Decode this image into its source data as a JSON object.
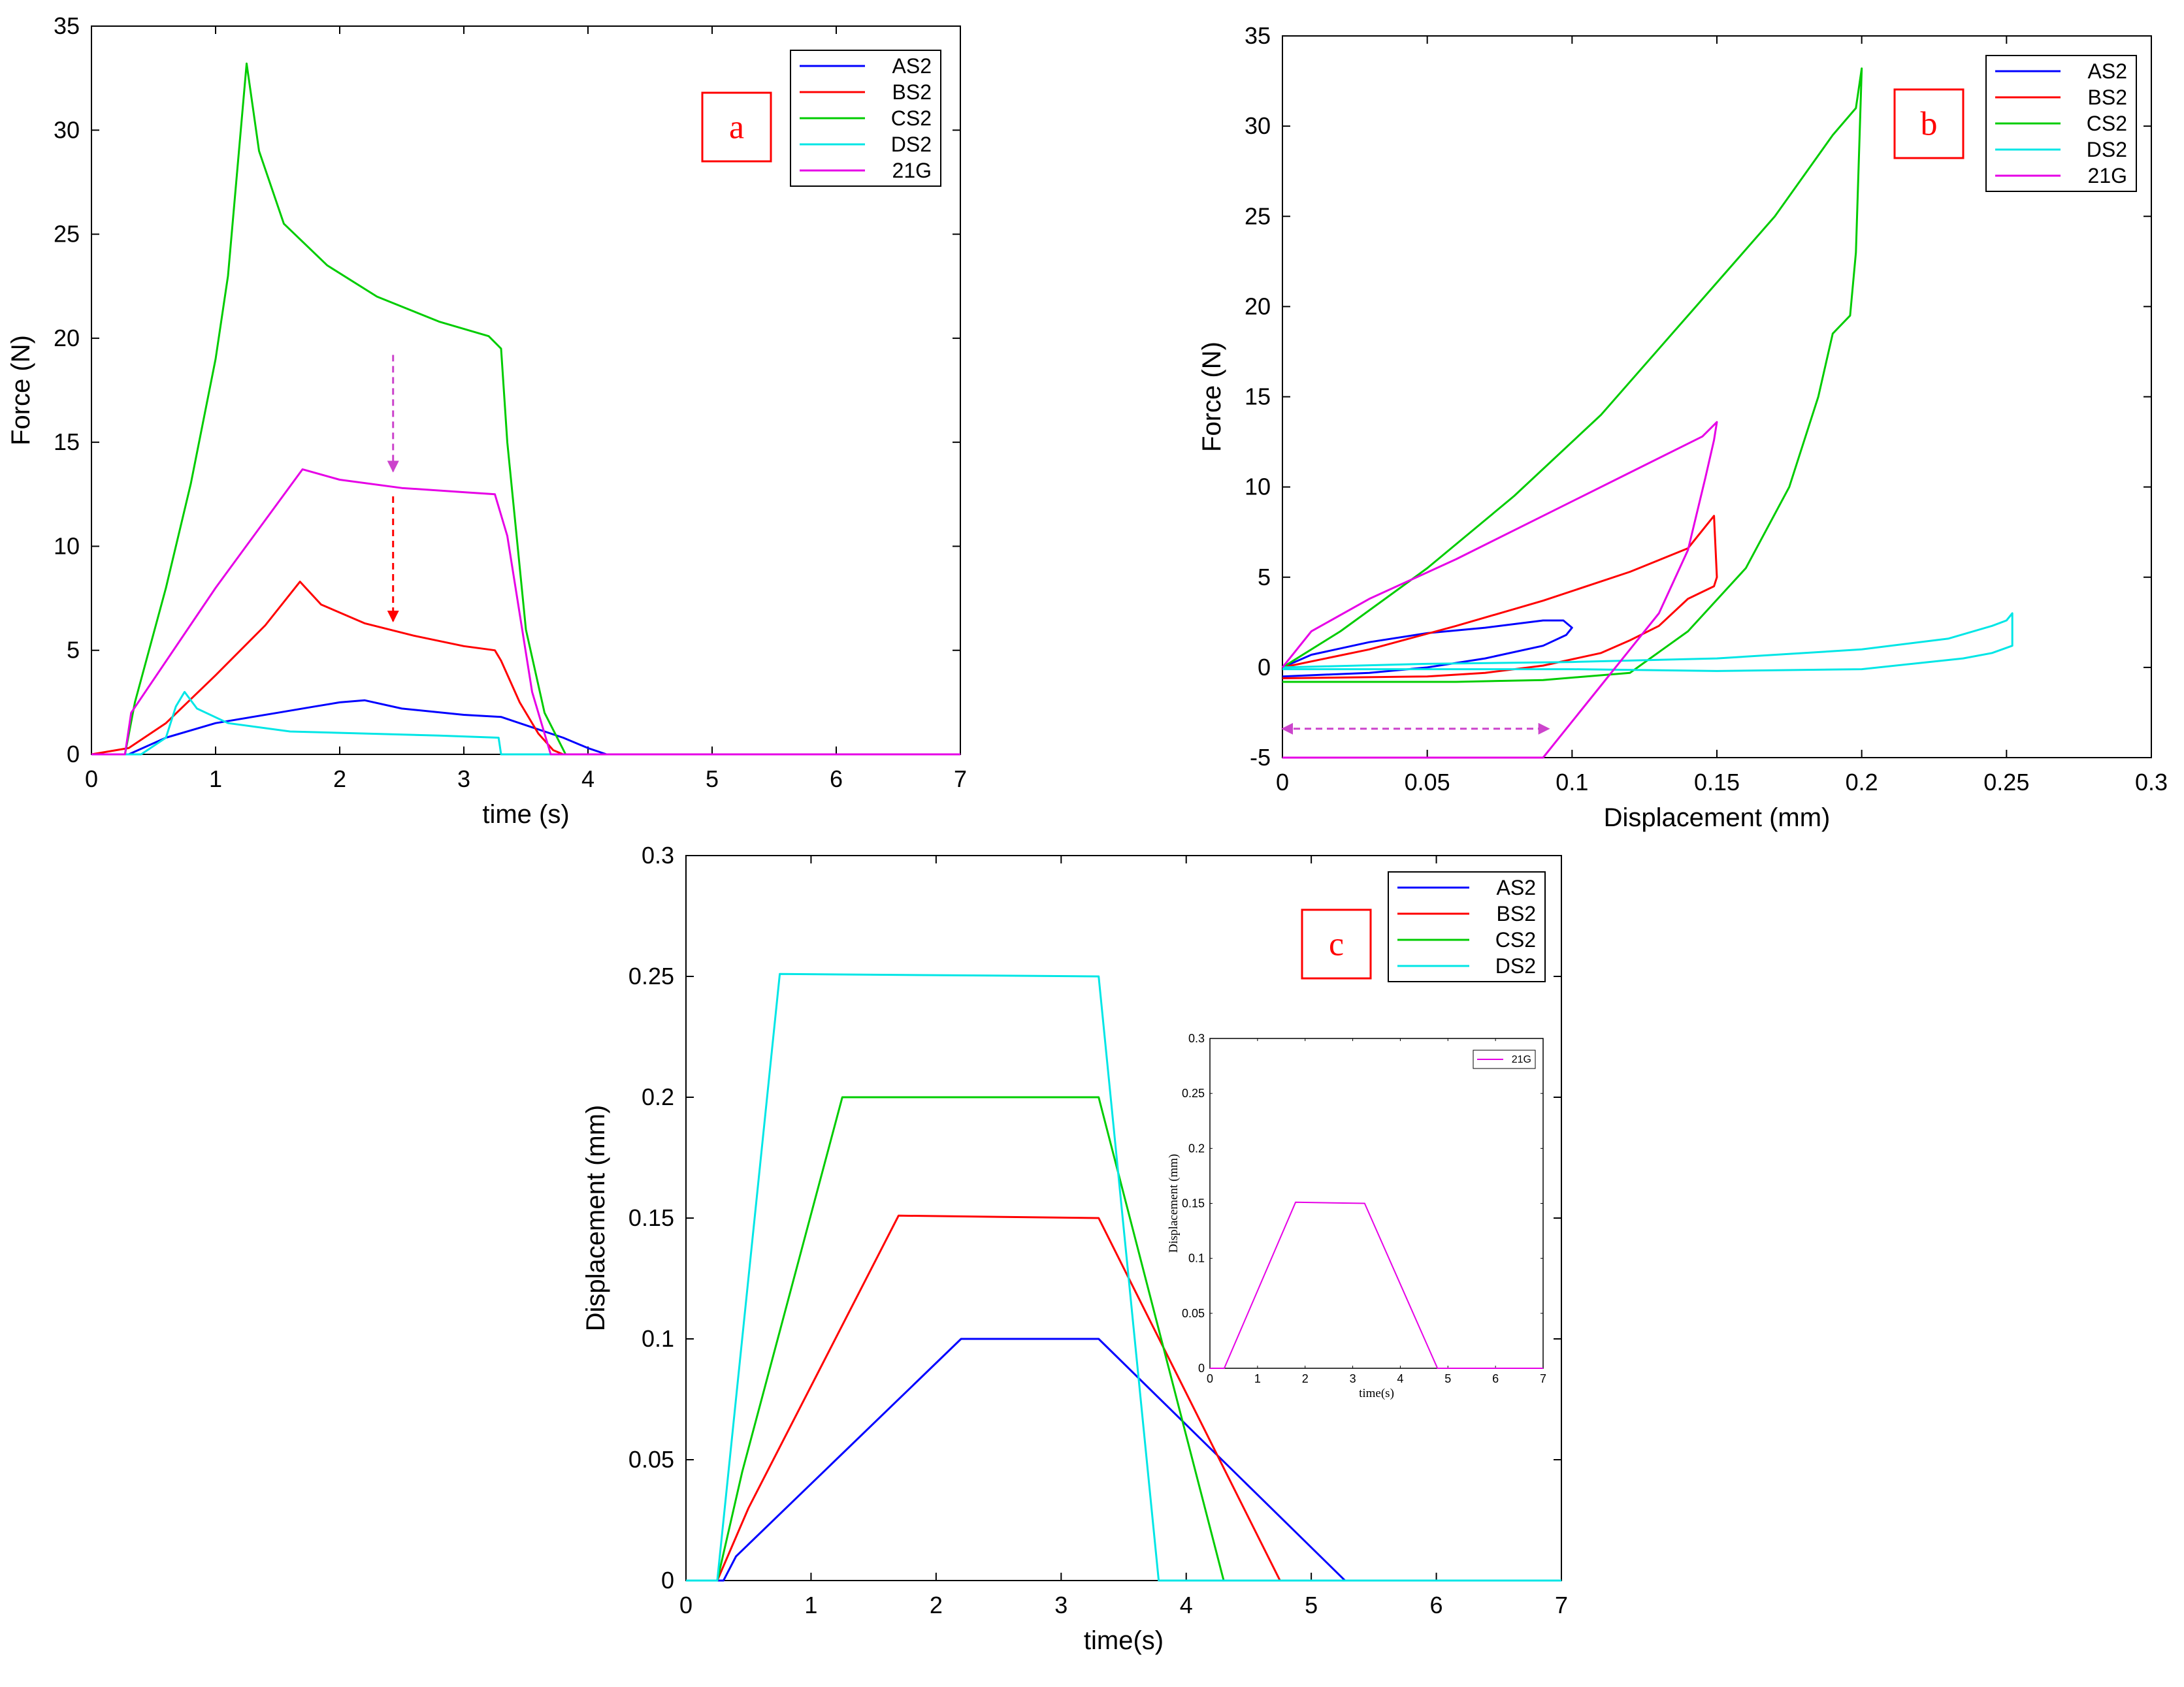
{
  "colors": {
    "AS2": "#0000ff",
    "BS2": "#ff0000",
    "CS2": "#00cc00",
    "DS2": "#00e6e6",
    "21G": "#e600e6",
    "panel_label": "#ff0000",
    "annotation_magenta": "#cc44cc",
    "annotation_red": "#ff0000"
  },
  "chart_data": [
    {
      "id": "a",
      "type": "line",
      "panel_label": "a",
      "xlabel": "time (s)",
      "ylabel": "Force (N)",
      "xlim": [
        0,
        7
      ],
      "ylim": [
        0,
        35
      ],
      "xticks": [
        "0",
        "1",
        "2",
        "3",
        "4",
        "5",
        "6",
        "7"
      ],
      "yticks": [
        "0",
        "5",
        "10",
        "15",
        "20",
        "25",
        "30",
        "35"
      ],
      "legend_position": "top-right",
      "legend": [
        "AS2",
        "BS2",
        "CS2",
        "DS2",
        "21G"
      ],
      "series": [
        {
          "name": "AS2",
          "x": [
            0,
            0.3,
            0.6,
            1.0,
            1.5,
            1.8,
            2.0,
            2.2,
            2.5,
            3.0,
            3.3,
            3.5,
            3.8,
            4.0,
            4.15,
            7.0
          ],
          "y": [
            0,
            0,
            0.8,
            1.5,
            2.0,
            2.3,
            2.5,
            2.6,
            2.2,
            1.9,
            1.8,
            1.4,
            0.8,
            0.3,
            0,
            0
          ]
        },
        {
          "name": "BS2",
          "x": [
            0,
            0.3,
            0.6,
            1.0,
            1.4,
            1.68,
            1.85,
            2.2,
            2.6,
            3.0,
            3.25,
            3.3,
            3.45,
            3.6,
            3.72,
            3.8,
            7.0
          ],
          "y": [
            0,
            0.3,
            1.5,
            3.8,
            6.2,
            8.3,
            7.2,
            6.3,
            5.7,
            5.2,
            5.0,
            4.5,
            2.5,
            1.0,
            0.2,
            0,
            0
          ]
        },
        {
          "name": "CS2",
          "x": [
            0,
            0.27,
            0.35,
            0.6,
            0.8,
            1.0,
            1.1,
            1.25,
            1.35,
            1.55,
            1.9,
            2.3,
            2.8,
            3.2,
            3.3,
            3.35,
            3.5,
            3.65,
            3.82,
            7.0
          ],
          "y": [
            0,
            0,
            2.5,
            8,
            13,
            19,
            23,
            33.2,
            29,
            25.5,
            23.5,
            22,
            20.8,
            20.1,
            19.5,
            15,
            6,
            2,
            0,
            0
          ]
        },
        {
          "name": "DS2",
          "x": [
            0,
            0.4,
            0.6,
            0.68,
            0.75,
            0.85,
            1.1,
            1.6,
            2.2,
            2.8,
            3.28,
            3.3,
            7.0
          ],
          "y": [
            0,
            0,
            0.8,
            2.3,
            3.0,
            2.2,
            1.5,
            1.1,
            1.0,
            0.9,
            0.8,
            0,
            0
          ]
        },
        {
          "name": "21G",
          "x": [
            0,
            0.27,
            0.32,
            1.0,
            1.7,
            2.0,
            2.5,
            3.0,
            3.25,
            3.35,
            3.55,
            3.7,
            7.0
          ],
          "y": [
            0,
            0,
            2.0,
            8.0,
            13.7,
            13.2,
            12.8,
            12.6,
            12.5,
            10.5,
            3.0,
            0,
            0
          ]
        }
      ],
      "annotations": [
        {
          "type": "arrow",
          "style": "dashed",
          "color": "magenta",
          "from": [
            2.43,
            19.2
          ],
          "to": [
            2.43,
            13.6
          ]
        },
        {
          "type": "arrow",
          "style": "dashed",
          "color": "red",
          "from": [
            2.43,
            12.4
          ],
          "to": [
            2.43,
            6.4
          ]
        }
      ]
    },
    {
      "id": "b",
      "type": "line",
      "panel_label": "b",
      "xlabel": "Displacement (mm)",
      "ylabel": "Force (N)",
      "xlim": [
        0,
        0.3
      ],
      "ylim": [
        -5,
        35
      ],
      "xticks": [
        "0",
        "0.05",
        "0.1",
        "0.15",
        "0.2",
        "0.25",
        "0.3"
      ],
      "yticks": [
        "-5",
        "0",
        "5",
        "10",
        "15",
        "20",
        "25",
        "30",
        "35"
      ],
      "legend_position": "top-right",
      "legend": [
        "AS2",
        "BS2",
        "CS2",
        "DS2",
        "21G"
      ],
      "series": [
        {
          "name": "AS2",
          "x": [
            0.0,
            0.01,
            0.03,
            0.05,
            0.07,
            0.09,
            0.097,
            0.1,
            0.098,
            0.09,
            0.07,
            0.05,
            0.03,
            0.0
          ],
          "y": [
            0,
            0.7,
            1.4,
            1.9,
            2.2,
            2.6,
            2.6,
            2.2,
            1.8,
            1.2,
            0.5,
            0.0,
            -0.3,
            -0.5
          ]
        },
        {
          "name": "BS2",
          "x": [
            0.0,
            0.03,
            0.06,
            0.09,
            0.12,
            0.14,
            0.149,
            0.15,
            0.149,
            0.14,
            0.13,
            0.12,
            0.11,
            0.09,
            0.07,
            0.05,
            0.0
          ],
          "y": [
            0,
            1.0,
            2.3,
            3.7,
            5.3,
            6.6,
            8.4,
            5.0,
            4.5,
            3.8,
            2.3,
            1.5,
            0.8,
            0.1,
            -0.3,
            -0.5,
            -0.6
          ]
        },
        {
          "name": "CS2",
          "x": [
            0.0,
            0.02,
            0.05,
            0.08,
            0.11,
            0.14,
            0.17,
            0.19,
            0.198,
            0.2,
            0.198,
            0.196,
            0.19,
            0.185,
            0.175,
            0.16,
            0.14,
            0.12,
            0.09,
            0.06,
            0.0
          ],
          "y": [
            0,
            2.0,
            5.5,
            9.5,
            14.0,
            19.5,
            25.0,
            29.5,
            31.0,
            33.2,
            23.0,
            19.5,
            18.5,
            15.0,
            10.0,
            5.5,
            2.0,
            -0.3,
            -0.7,
            -0.8,
            -0.8
          ]
        },
        {
          "name": "DS2",
          "x": [
            0.0,
            0.05,
            0.1,
            0.15,
            0.2,
            0.23,
            0.245,
            0.25,
            0.252,
            0.252,
            0.245,
            0.235,
            0.2,
            0.15,
            0.1,
            0.05,
            0.0
          ],
          "y": [
            0,
            0.2,
            0.3,
            0.5,
            1.0,
            1.6,
            2.3,
            2.6,
            3.0,
            1.2,
            0.8,
            0.5,
            -0.1,
            -0.2,
            -0.1,
            -0.1,
            -0.1
          ]
        },
        {
          "name": "21G",
          "x": [
            0.0,
            0.01,
            0.03,
            0.06,
            0.09,
            0.12,
            0.145,
            0.15,
            0.149,
            0.146,
            0.14,
            0.13,
            0.12,
            0.11,
            0.1,
            0.09,
            0.0
          ],
          "y": [
            0,
            2.0,
            3.8,
            6.0,
            8.4,
            10.8,
            12.8,
            13.6,
            12.6,
            10.5,
            6.5,
            3.0,
            1.0,
            -1.0,
            -3.0,
            -5.0,
            -5.0
          ]
        }
      ],
      "annotations": [
        {
          "type": "double-arrow",
          "style": "dashed",
          "color": "magenta",
          "from": [
            0.0,
            -3.4
          ],
          "to": [
            0.092,
            -3.4
          ]
        }
      ]
    },
    {
      "id": "c",
      "type": "line",
      "panel_label": "c",
      "xlabel": "time(s)",
      "ylabel": "Displacement (mm)",
      "xlim": [
        0,
        7
      ],
      "ylim": [
        0,
        0.3
      ],
      "xticks": [
        "0",
        "1",
        "2",
        "3",
        "4",
        "5",
        "6",
        "7"
      ],
      "yticks": [
        "0",
        "0.05",
        "0.1",
        "0.15",
        "0.2",
        "0.25",
        "0.3"
      ],
      "legend_position": "top-right",
      "legend": [
        "AS2",
        "BS2",
        "CS2",
        "DS2"
      ],
      "series": [
        {
          "name": "AS2",
          "x": [
            0,
            0.3,
            0.4,
            2.2,
            3.3,
            5.27,
            7.0
          ],
          "y": [
            0,
            0,
            0.01,
            0.1,
            0.1,
            0,
            0
          ]
        },
        {
          "name": "BS2",
          "x": [
            0,
            0.25,
            0.5,
            1.7,
            3.3,
            4.75,
            7.0
          ],
          "y": [
            0,
            0,
            0.03,
            0.151,
            0.15,
            0,
            0
          ]
        },
        {
          "name": "CS2",
          "x": [
            0,
            0.25,
            0.45,
            1.25,
            3.3,
            4.3,
            7.0
          ],
          "y": [
            0,
            0,
            0.045,
            0.2,
            0.2,
            0,
            0
          ]
        },
        {
          "name": "DS2",
          "x": [
            0,
            0.25,
            0.75,
            3.3,
            3.78,
            7.0
          ],
          "y": [
            0,
            0,
            0.251,
            0.25,
            0,
            0
          ]
        }
      ],
      "inset": {
        "type": "line",
        "xlabel": "time(s)",
        "ylabel": "Displacement (mm)",
        "xlim": [
          0,
          7
        ],
        "ylim": [
          0,
          0.3
        ],
        "xticks": [
          "0",
          "1",
          "2",
          "3",
          "4",
          "5",
          "6",
          "7"
        ],
        "yticks": [
          "0",
          "0.05",
          "0.1",
          "0.15",
          "0.2",
          "0.25",
          "0.3"
        ],
        "legend": [
          "21G"
        ],
        "series": [
          {
            "name": "21G",
            "x": [
              0,
              0.3,
              1.8,
              3.25,
              4.78,
              7.0
            ],
            "y": [
              0,
              0,
              0.151,
              0.15,
              0,
              0
            ]
          }
        ]
      }
    }
  ]
}
